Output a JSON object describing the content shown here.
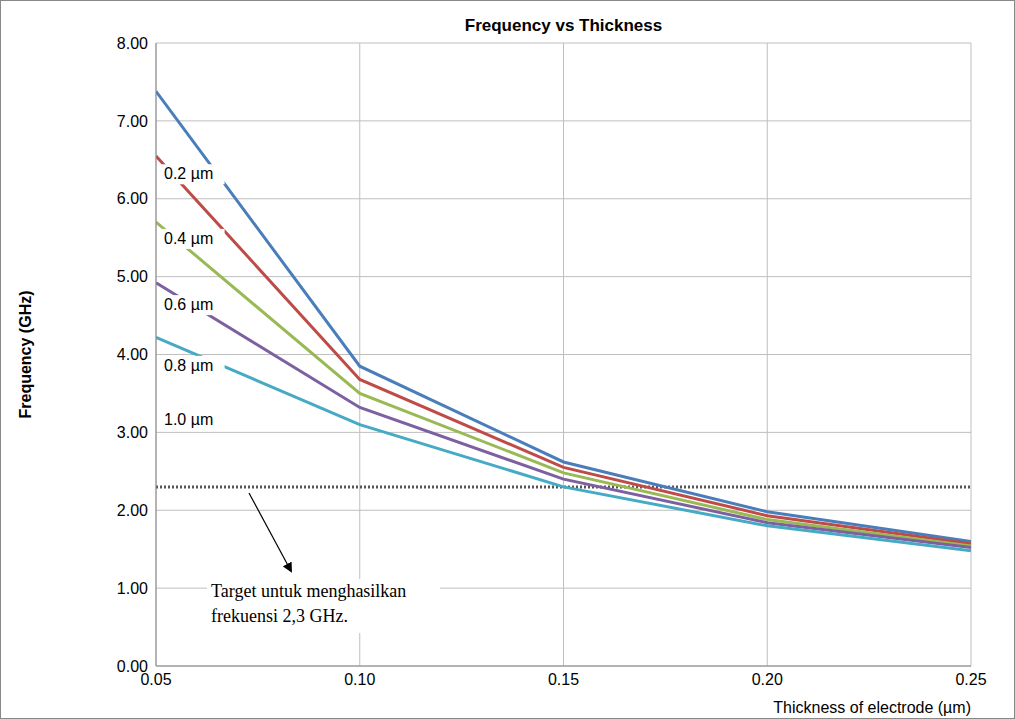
{
  "chart_data": {
    "type": "line",
    "title": "Frequency vs Thickness",
    "x_label": "Thickness of electrode (µm)",
    "y_label": "Frequency (GHz)",
    "x": [
      0.05,
      0.1,
      0.15,
      0.2,
      0.25
    ],
    "series": [
      {
        "name": "0.2 µm",
        "color": "#4a7ebb",
        "values": [
          7.38,
          3.85,
          2.62,
          1.98,
          1.6
        ]
      },
      {
        "name": "0.4 µm",
        "color": "#be4b48",
        "values": [
          6.55,
          3.68,
          2.55,
          1.93,
          1.57
        ]
      },
      {
        "name": "0.6 µm",
        "color": "#98b954",
        "values": [
          5.7,
          3.5,
          2.48,
          1.88,
          1.54
        ]
      },
      {
        "name": "0.8 µm",
        "color": "#7d60a0",
        "values": [
          4.92,
          3.32,
          2.4,
          1.84,
          1.52
        ]
      },
      {
        "name": "1.0 µm",
        "color": "#46aac5",
        "values": [
          4.22,
          3.1,
          2.3,
          1.8,
          1.48
        ]
      }
    ],
    "xlim": [
      0.05,
      0.25
    ],
    "xticks": [
      0.05,
      {
        "value": 0.1,
        "label": "0.10"
      },
      0.15,
      {
        "value": 0.2,
        "label": "0.20"
      },
      0.25
    ],
    "ylim": [
      0,
      8
    ],
    "yticks": [
      {
        "value": 0,
        "label": "0.00"
      },
      {
        "value": 1,
        "label": "1.00"
      },
      {
        "value": 2,
        "label": "2.00"
      },
      {
        "value": 3,
        "label": "3.00"
      },
      {
        "value": 4,
        "label": "4.00"
      },
      {
        "value": 5,
        "label": "5.00"
      },
      {
        "value": 6,
        "label": "6.00"
      },
      {
        "value": 7,
        "label": "7.00"
      },
      {
        "value": 8,
        "label": "8.00"
      }
    ],
    "grid": true,
    "annotations": [
      {
        "text": "Target untuk menghasilkan frekuensi 2,3 GHz.",
        "y": 2.3
      }
    ]
  }
}
